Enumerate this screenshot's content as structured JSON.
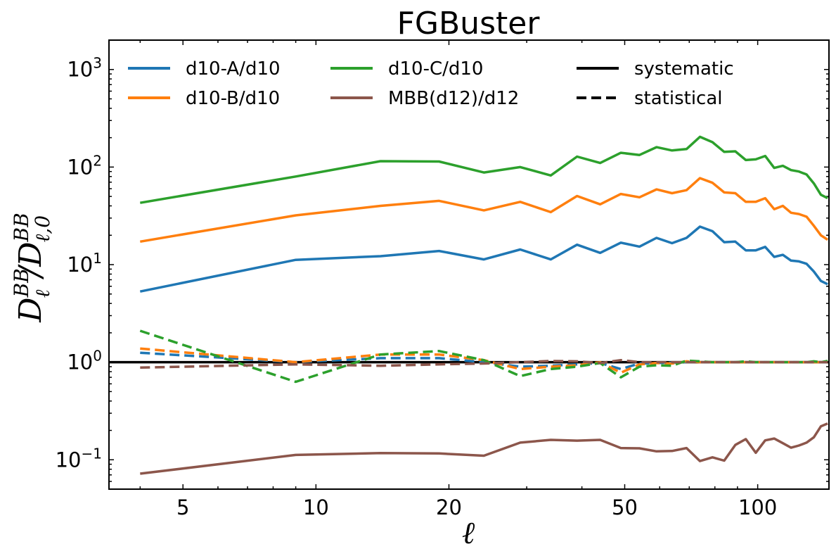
{
  "chart_data": {
    "type": "line",
    "title": "FGBuster",
    "xlabel": "ℓ",
    "ylabel": "D_ℓ^BB / D_{ℓ,0}^BB",
    "ylabel_parts": {
      "main": "D",
      "sub1": "ℓ",
      "sup1": "BB",
      "slash": "/",
      "main2": "D",
      "sub2": "ℓ,0",
      "sup2": "BB"
    },
    "xscale": "log",
    "yscale": "log",
    "xlim": [
      3.4,
      145
    ],
    "ylim": [
      0.05,
      2000
    ],
    "xticks": [
      5,
      10,
      20,
      50,
      100
    ],
    "xtick_labels": [
      "5",
      "10",
      "20",
      "50",
      "100"
    ],
    "yticks": [
      0.1,
      1,
      10,
      100,
      1000
    ],
    "ytick_labels": [
      {
        "base": "10",
        "exp": "−1"
      },
      {
        "base": "10",
        "exp": "0"
      },
      {
        "base": "10",
        "exp": "1"
      },
      {
        "base": "10",
        "exp": "2"
      },
      {
        "base": "10",
        "exp": "3"
      }
    ],
    "x": [
      4,
      9,
      14,
      19,
      24,
      29,
      34,
      39,
      44,
      49,
      54,
      59,
      64,
      69,
      74,
      79,
      84,
      89,
      94,
      99,
      104,
      109,
      114,
      119,
      124,
      129,
      134,
      139,
      144
    ],
    "series": [
      {
        "name": "d10-A/d10",
        "color": "#1f77b4",
        "style": "solid",
        "values": [
          5.3,
          11.2,
          12.2,
          13.8,
          11.3,
          14.3,
          11.3,
          16.0,
          13.2,
          16.8,
          15.3,
          18.8,
          16.6,
          18.8,
          24.5,
          22.0,
          17.0,
          17.2,
          14.0,
          14.0,
          15.2,
          12.0,
          12.6,
          11.0,
          10.8,
          10.2,
          8.5,
          6.8,
          6.3
        ]
      },
      {
        "name": "d10-B/d10",
        "color": "#ff7f0e",
        "style": "solid",
        "values": [
          17.2,
          32.0,
          40.0,
          45.0,
          36.0,
          44.0,
          34.5,
          50.5,
          41.5,
          53.0,
          49.0,
          59.0,
          54.0,
          58.0,
          77.0,
          69.0,
          55.0,
          54.0,
          44.0,
          44.0,
          48.0,
          37.0,
          40.0,
          34.0,
          33.0,
          31.0,
          25.0,
          20.0,
          18.0
        ]
      },
      {
        "name": "d10-C/d10",
        "color": "#2ca02c",
        "style": "solid",
        "values": [
          43.0,
          80.0,
          115.0,
          114.0,
          88.0,
          100.0,
          82.0,
          128.0,
          110.0,
          140.0,
          133.0,
          160.0,
          148.0,
          153.0,
          204.0,
          180.0,
          143.0,
          145.0,
          118.0,
          120.0,
          130.0,
          98.0,
          103.0,
          93.0,
          90.0,
          84.0,
          68.0,
          52.0,
          48.0
        ]
      },
      {
        "name": "MBB(d12)/d12",
        "color": "#8c564b",
        "style": "solid",
        "values": [
          0.072,
          0.112,
          0.117,
          0.116,
          0.11,
          0.15,
          0.16,
          0.157,
          0.16,
          0.132,
          0.131,
          0.122,
          0.123,
          0.132,
          0.097,
          0.106,
          0.098,
          0.142,
          0.163,
          0.118,
          0.158,
          0.165,
          0.148,
          0.133,
          0.14,
          0.15,
          0.17,
          0.22,
          0.235
        ]
      },
      {
        "name": "d10-A/d10 statistical",
        "color": "#1f77b4",
        "style": "dashed",
        "values": [
          1.25,
          1.0,
          1.1,
          1.1,
          1.0,
          0.9,
          0.92,
          0.95,
          0.98,
          0.85,
          0.97,
          0.98,
          0.99,
          1.0,
          1.0,
          1.0,
          1.0,
          1.0,
          1.0,
          1.0,
          1.0,
          1.0,
          1.0,
          1.0,
          1.0,
          1.0,
          1.0,
          1.0,
          1.0
        ]
      },
      {
        "name": "d10-B/d10 statistical",
        "color": "#ff7f0e",
        "style": "dashed",
        "values": [
          1.38,
          1.0,
          1.2,
          1.2,
          1.05,
          0.85,
          0.9,
          0.93,
          1.0,
          0.78,
          0.95,
          0.98,
          0.97,
          1.02,
          1.0,
          1.0,
          1.0,
          1.0,
          1.0,
          1.0,
          1.0,
          1.0,
          1.0,
          1.0,
          1.0,
          1.0,
          1.0,
          1.0,
          1.0
        ]
      },
      {
        "name": "d10-C/d10 statistical",
        "color": "#2ca02c",
        "style": "dashed",
        "values": [
          2.1,
          0.63,
          1.2,
          1.3,
          1.05,
          0.72,
          0.85,
          0.9,
          0.98,
          0.7,
          0.9,
          0.93,
          0.92,
          1.04,
          1.02,
          1.0,
          1.0,
          1.0,
          1.02,
          1.0,
          1.0,
          1.0,
          1.0,
          1.0,
          1.0,
          1.0,
          1.02,
          1.0,
          1.03
        ]
      },
      {
        "name": "MBB(d12)/d12 statistical",
        "color": "#8c564b",
        "style": "dashed",
        "values": [
          0.88,
          0.95,
          0.92,
          0.95,
          0.97,
          1.0,
          1.03,
          1.02,
          0.98,
          1.05,
          1.0,
          1.0,
          1.0,
          1.0,
          1.0,
          1.0,
          1.0,
          1.0,
          1.0,
          1.0,
          1.0,
          1.0,
          1.0,
          1.0,
          1.0,
          1.0,
          1.0,
          1.0,
          1.0
        ]
      }
    ],
    "reference_line": {
      "y": 1,
      "color": "#000000"
    },
    "legend": {
      "placement": "top",
      "columns": 3,
      "entries": [
        {
          "label": "d10-A/d10",
          "color": "#1f77b4",
          "style": "solid"
        },
        {
          "label": "d10-B/d10",
          "color": "#ff7f0e",
          "style": "solid"
        },
        {
          "label": "d10-C/d10",
          "color": "#2ca02c",
          "style": "solid"
        },
        {
          "label": "MBB(d12)/d12",
          "color": "#8c564b",
          "style": "solid"
        },
        {
          "label": "systematic",
          "color": "#000000",
          "style": "solid"
        },
        {
          "label": "statistical",
          "color": "#000000",
          "style": "dashed"
        }
      ]
    }
  }
}
